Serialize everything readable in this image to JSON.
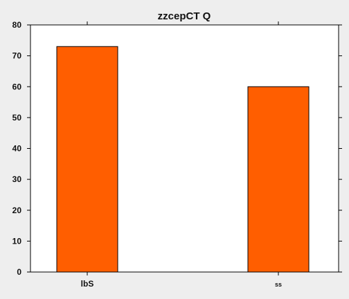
{
  "chart_data": {
    "type": "bar",
    "title": "zzcepCT Q",
    "categories": [
      "lbS",
      "ss"
    ],
    "values": [
      73,
      60
    ],
    "xlabel": "",
    "ylabel": "",
    "ylim": [
      0,
      80
    ],
    "yticks": [
      0,
      10,
      20,
      30,
      40,
      50,
      60,
      70,
      80
    ],
    "grid": false,
    "bar_color": "#ff5e00",
    "bar_edge_color": "#000000",
    "background_color": "#eeeeee",
    "plot_background_color": "#ffffff"
  }
}
